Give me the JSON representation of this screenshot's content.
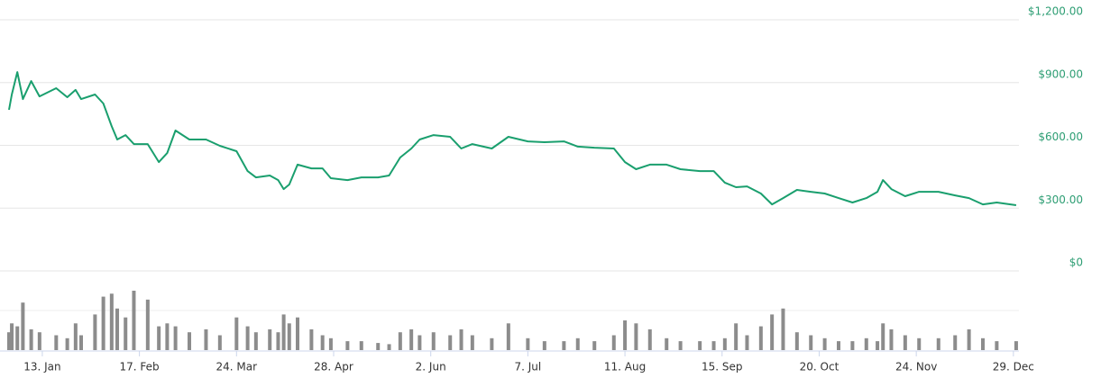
{
  "chart_data": {
    "type": "line",
    "color": "#1a9f6e",
    "x": [
      "1. Jan",
      "2. Jan",
      "4. Jan",
      "6. Jan",
      "9. Jan",
      "12. Jan",
      "18. Jan",
      "22. Jan",
      "25. Jan",
      "27. Jan",
      "1. Feb",
      "4. Feb",
      "7. Feb",
      "9. Feb",
      "12. Feb",
      "15. Feb",
      "20. Feb",
      "24. Feb",
      "27. Feb",
      "2. Mar",
      "7. Mar",
      "13. Mar",
      "18. Mar",
      "24. Mar",
      "28. Mar",
      "31. Mar",
      "5. Apr",
      "8. Apr",
      "10. Apr",
      "12. Apr",
      "15. Apr",
      "20. Apr",
      "24. Apr",
      "27. Apr",
      "3. May",
      "8. May",
      "14. May",
      "18. May",
      "22. May",
      "26. May",
      "29. May",
      "3. Jun",
      "9. Jun",
      "13. Jun",
      "17. Jun",
      "24. Jun",
      "30. Jun",
      "7. Jul",
      "13. Jul",
      "20. Jul",
      "25. Jul",
      "31. Jul",
      "7. Aug",
      "11. Aug",
      "15. Aug",
      "20. Aug",
      "26. Aug",
      "31. Aug",
      "7. Sep",
      "12. Sep",
      "16. Sep",
      "20. Sep",
      "24. Sep",
      "29. Sep",
      "3. Oct",
      "7. Oct",
      "12. Oct",
      "17. Oct",
      "22. Oct",
      "27. Oct",
      "1. Nov",
      "6. Nov",
      "10. Nov",
      "12. Nov",
      "15. Nov",
      "20. Nov",
      "25. Nov",
      "2. Dec",
      "8. Dec",
      "13. Dec",
      "18. Dec",
      "23. Dec",
      "30. Dec"
    ],
    "values": [
      770,
      843,
      950,
      821,
      907,
      834,
      873,
      830,
      865,
      821,
      843,
      800,
      692,
      628,
      649,
      606,
      606,
      520,
      563,
      671,
      628,
      628,
      598,
      572,
      477,
      447,
      456,
      434,
      391,
      413,
      508,
      490,
      490,
      443,
      434,
      447,
      447,
      456,
      542,
      585,
      628,
      649,
      641,
      585,
      606,
      585,
      641,
      619,
      615,
      619,
      594,
      589,
      585,
      520,
      486,
      508,
      508,
      486,
      477,
      477,
      422,
      400,
      404,
      370,
      318,
      348,
      387,
      378,
      370,
      348,
      327,
      348,
      378,
      434,
      391,
      357,
      378,
      378,
      361,
      348,
      318,
      327,
      314
    ],
    "volume": {
      "color": "#8c8c8c",
      "ylim": [
        0,
        100
      ],
      "values": [
        30,
        45,
        40,
        80,
        35,
        30,
        25,
        20,
        45,
        25,
        60,
        90,
        95,
        70,
        55,
        100,
        85,
        40,
        45,
        40,
        30,
        35,
        25,
        55,
        40,
        30,
        35,
        30,
        60,
        45,
        55,
        35,
        25,
        20,
        15,
        15,
        12,
        10,
        30,
        35,
        25,
        30,
        25,
        35,
        25,
        20,
        45,
        20,
        15,
        15,
        20,
        15,
        25,
        50,
        45,
        35,
        20,
        15,
        15,
        15,
        20,
        45,
        25,
        40,
        60,
        70,
        30,
        25,
        20,
        15,
        15,
        20,
        15,
        45,
        35,
        25,
        20,
        20,
        25,
        35,
        20,
        15,
        15
      ]
    },
    "xlim": [
      "1. Jan",
      "31. Dec"
    ],
    "xticks": [
      "13. Jan",
      "17. Feb",
      "24. Mar",
      "28. Apr",
      "2. Jun",
      "7. Jul",
      "11. Aug",
      "15. Sep",
      "20. Oct",
      "24. Nov",
      "29. Dec"
    ],
    "ylim": [
      0,
      1200
    ],
    "yticks": [
      {
        "value": 0,
        "label": "$0"
      },
      {
        "value": 300,
        "label": "$300.00"
      },
      {
        "value": 600,
        "label": "$600.00"
      },
      {
        "value": 900,
        "label": "$900.00"
      },
      {
        "value": 1200,
        "label": "$1,200.00"
      }
    ],
    "tick_color": "#2e9e74",
    "grid": true
  }
}
